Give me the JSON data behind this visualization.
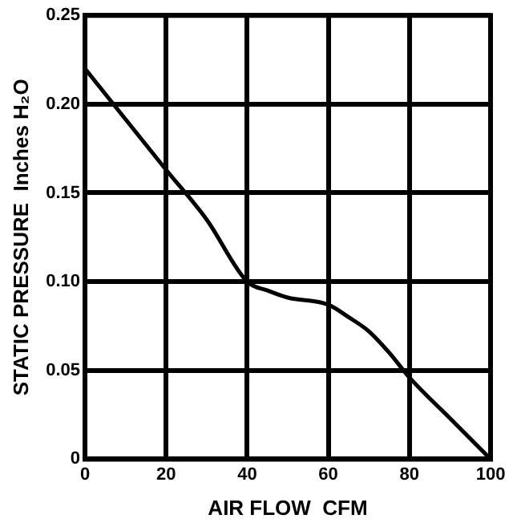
{
  "chart_data": {
    "type": "line",
    "xlabel": "AIR FLOW  CFM",
    "ylabel": "STATIC PRESSURE  Inches H₂O",
    "x": [
      0,
      20,
      30,
      40,
      45,
      50,
      60,
      65,
      70,
      75,
      80,
      90,
      100
    ],
    "series": [
      {
        "color": "#000000",
        "values": [
          0.22,
          0.163,
          0.135,
          0.1,
          0.095,
          0.091,
          0.087,
          0.08,
          0.072,
          0.06,
          0.046,
          0.023,
          0
        ]
      }
    ],
    "xlim": [
      0,
      100
    ],
    "xticks": [
      0,
      20,
      40,
      60,
      80,
      100
    ],
    "ylim": [
      0,
      0.25
    ],
    "yticks": [
      0,
      0.05,
      {
        "value": 0.1,
        "label": "0.10"
      },
      0.15,
      {
        "value": 0.2,
        "label": "0.20"
      },
      0.25
    ],
    "grid": true,
    "marker": "none",
    "line_style": "solid",
    "legend": false
  }
}
